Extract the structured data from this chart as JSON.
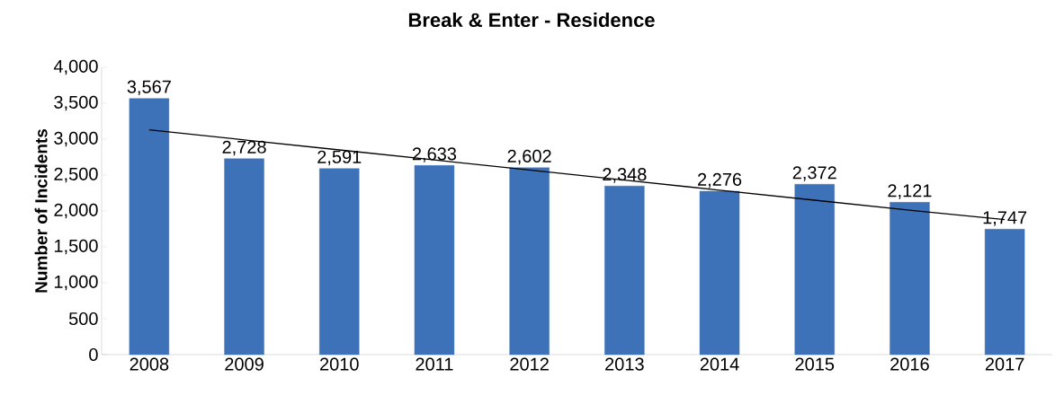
{
  "chart_data": {
    "type": "bar",
    "title": "Break & Enter - Residence",
    "ylabel": "Number of Incidents",
    "categories": [
      "2008",
      "2009",
      "2010",
      "2011",
      "2012",
      "2013",
      "2014",
      "2015",
      "2016",
      "2017"
    ],
    "series": [
      {
        "color": "#3d72b8",
        "values": [
          3567,
          2728,
          2591,
          2633,
          2602,
          2348,
          2276,
          2372,
          2121,
          1747
        ],
        "value_labels": [
          "3,567",
          "2,728",
          "2,591",
          "2,633",
          "2,602",
          "2,348",
          "2,276",
          "2,372",
          "2,121",
          "1,747"
        ]
      },
      {
        "type": "line",
        "color": "#000000",
        "values": [
          3130,
          2990,
          2850,
          2710,
          2570,
          2430,
          2290,
          2150,
          2010,
          1880
        ]
      }
    ],
    "ylim": [
      0,
      4000
    ],
    "yticks": [
      0,
      500,
      {
        "value": 1000,
        "label": "1,000"
      },
      {
        "value": 1500,
        "label": "1,500"
      },
      {
        "value": 2000,
        "label": "2,000"
      },
      {
        "value": 2500,
        "label": "2,500"
      },
      {
        "value": 3000,
        "label": "3,000"
      },
      {
        "value": 3500,
        "label": "3,500"
      },
      {
        "value": 4000,
        "label": "4,000"
      }
    ],
    "marker": "none",
    "legend": false,
    "grid": false
  }
}
